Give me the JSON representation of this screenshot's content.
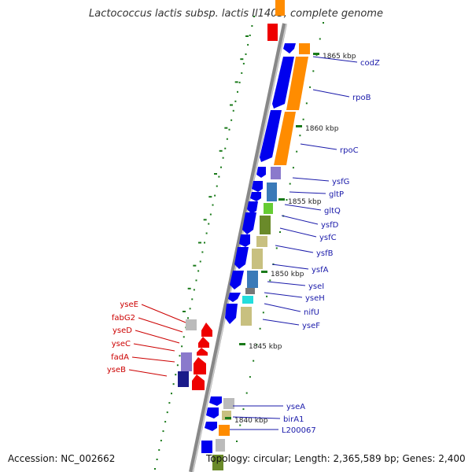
{
  "title": "Lactococcus lactis subsp. lactis Il1403, complete genome",
  "footer": {
    "accession": "Accession: NC_002662",
    "topology": "Topology: circular; Length: 2,365,589 bp; Genes: 2,400"
  },
  "kbp_labels": [
    "1865 kbp",
    "1860 kbp",
    "1855 kbp",
    "1850 kbp",
    "1845 kbp",
    "1840 kbp"
  ],
  "right_genes": [
    "codZ",
    "rpoB",
    "rpoC",
    "ysfG",
    "gltP",
    "gltQ",
    "ysfD",
    "ysfC",
    "ysfB",
    "ysfA",
    "yseI",
    "yseH",
    "nifU",
    "yseF",
    "yseA",
    "birA1",
    "L200067"
  ],
  "left_genes": [
    "yseE",
    "fabG2",
    "yseD",
    "yseC",
    "fadA",
    "yseB"
  ],
  "colors": {
    "forward": "#0000ee",
    "reverse": "#ee0000",
    "rna": "#ff8c00",
    "label_right": "#1a1aaa",
    "label_left": "#cc0000",
    "tick": "#1a7a1a"
  }
}
